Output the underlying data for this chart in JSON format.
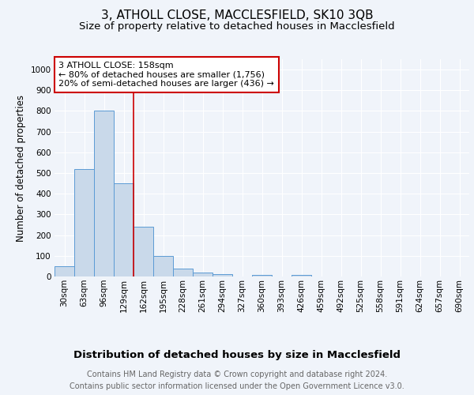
{
  "title1": "3, ATHOLL CLOSE, MACCLESFIELD, SK10 3QB",
  "title2": "Size of property relative to detached houses in Macclesfield",
  "xlabel": "Distribution of detached houses by size in Macclesfield",
  "ylabel": "Number of detached properties",
  "footer1": "Contains HM Land Registry data © Crown copyright and database right 2024.",
  "footer2": "Contains public sector information licensed under the Open Government Licence v3.0.",
  "annotation_line1": "3 ATHOLL CLOSE: 158sqm",
  "annotation_line2": "← 80% of detached houses are smaller (1,756)",
  "annotation_line3": "20% of semi-detached houses are larger (436) →",
  "bin_labels": [
    "30sqm",
    "63sqm",
    "96sqm",
    "129sqm",
    "162sqm",
    "195sqm",
    "228sqm",
    "261sqm",
    "294sqm",
    "327sqm",
    "360sqm",
    "393sqm",
    "426sqm",
    "459sqm",
    "492sqm",
    "525sqm",
    "558sqm",
    "591sqm",
    "624sqm",
    "657sqm",
    "690sqm"
  ],
  "bar_heights": [
    50,
    520,
    800,
    450,
    240,
    100,
    38,
    20,
    12,
    0,
    8,
    0,
    8,
    0,
    0,
    0,
    0,
    0,
    0,
    0,
    0
  ],
  "bar_color": "#c9d9ea",
  "bar_edge_color": "#5b9bd5",
  "red_line_color": "#cc0000",
  "background_color": "#f0f4fa",
  "plot_bg_color": "#f0f4fa",
  "grid_color": "#ffffff",
  "annotation_box_color": "#ffffff",
  "annotation_box_edge": "#cc0000",
  "title1_fontsize": 11,
  "title2_fontsize": 9.5,
  "xlabel_fontsize": 9.5,
  "ylabel_fontsize": 8.5,
  "tick_fontsize": 7.5,
  "annotation_fontsize": 8,
  "footer_fontsize": 7
}
